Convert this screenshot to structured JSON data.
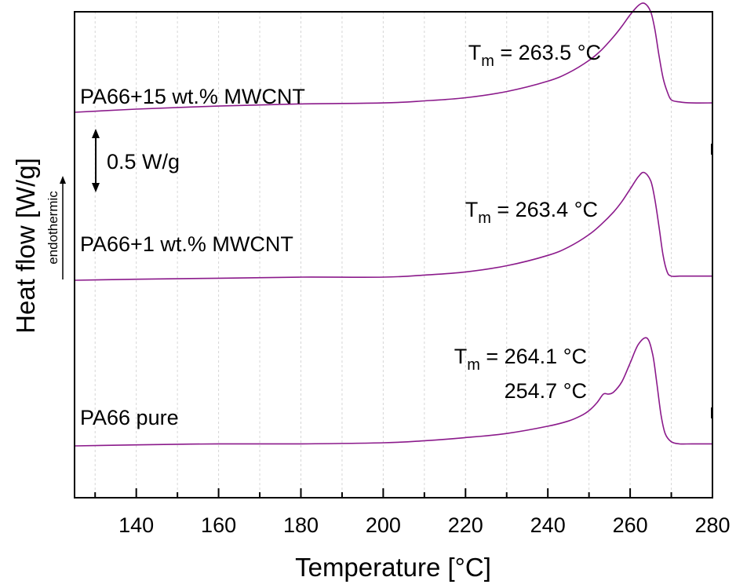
{
  "chart_data": {
    "type": "line",
    "title": "",
    "xlabel": "Temperature [°C]",
    "ylabel": "Heat flow [W/g]",
    "ylabel_note": "endothermic",
    "xlim": [
      125,
      280
    ],
    "xticks": [
      "140",
      "160",
      "180",
      "200",
      "220",
      "240",
      "260",
      "280"
    ],
    "x_minor_step": 10,
    "grid": "vertical dashed",
    "y_units": "W/g (offset curves)",
    "scale_bar": {
      "label": "0.5 W/g",
      "value": 0.5
    },
    "colors": {
      "line": "#8b1a8b",
      "grid": "#d6d6d6",
      "axis": "#000000"
    },
    "series": [
      {
        "name": "PA66+15 wt.% MWCNT",
        "annotation": {
          "prefix": "T",
          "sub": "m",
          "text": " = 263.5 °C"
        },
        "x": [
          125,
          140,
          160,
          180,
          200,
          210,
          220,
          230,
          240,
          245,
          250,
          253,
          256,
          258,
          260,
          262,
          263.5,
          265,
          266,
          267,
          268,
          269,
          270,
          272,
          275,
          280
        ],
        "y": [
          0.0,
          0.03,
          0.06,
          0.08,
          0.09,
          0.11,
          0.14,
          0.2,
          0.3,
          0.38,
          0.5,
          0.6,
          0.73,
          0.83,
          0.94,
          1.03,
          1.05,
          0.97,
          0.8,
          0.55,
          0.33,
          0.2,
          0.12,
          0.1,
          0.09,
          0.09
        ]
      },
      {
        "name": "PA66+1 wt.% MWCNT",
        "annotation": {
          "prefix": "T",
          "sub": "m",
          "text": " = 263.4 °C"
        },
        "x": [
          125,
          140,
          160,
          180,
          200,
          210,
          220,
          230,
          240,
          245,
          250,
          253,
          256,
          258,
          260,
          262,
          263.4,
          265,
          266,
          267,
          268,
          269,
          270,
          272,
          275,
          280
        ],
        "y": [
          0.0,
          0.01,
          0.02,
          0.03,
          0.03,
          0.05,
          0.08,
          0.14,
          0.24,
          0.32,
          0.44,
          0.54,
          0.66,
          0.76,
          0.88,
          1.0,
          1.04,
          0.96,
          0.78,
          0.52,
          0.24,
          0.08,
          0.04,
          0.04,
          0.04,
          0.04
        ]
      },
      {
        "name": "PA66 pure",
        "annotation": {
          "prefix": "T",
          "sub": "m",
          "text": " = 264.1 °C",
          "second": "254.7 °C"
        },
        "x": [
          125,
          140,
          160,
          180,
          200,
          210,
          220,
          230,
          240,
          245,
          248,
          250,
          252,
          253.5,
          254.7,
          256,
          258,
          260,
          262,
          264.1,
          265.5,
          266.5,
          267.5,
          268.5,
          270,
          272,
          275,
          280
        ],
        "y": [
          0.0,
          0.01,
          0.02,
          0.02,
          0.03,
          0.05,
          0.08,
          0.12,
          0.19,
          0.24,
          0.29,
          0.34,
          0.42,
          0.5,
          0.5,
          0.52,
          0.62,
          0.8,
          0.98,
          1.04,
          0.88,
          0.6,
          0.3,
          0.12,
          0.04,
          0.02,
          0.02,
          0.02
        ]
      }
    ]
  }
}
